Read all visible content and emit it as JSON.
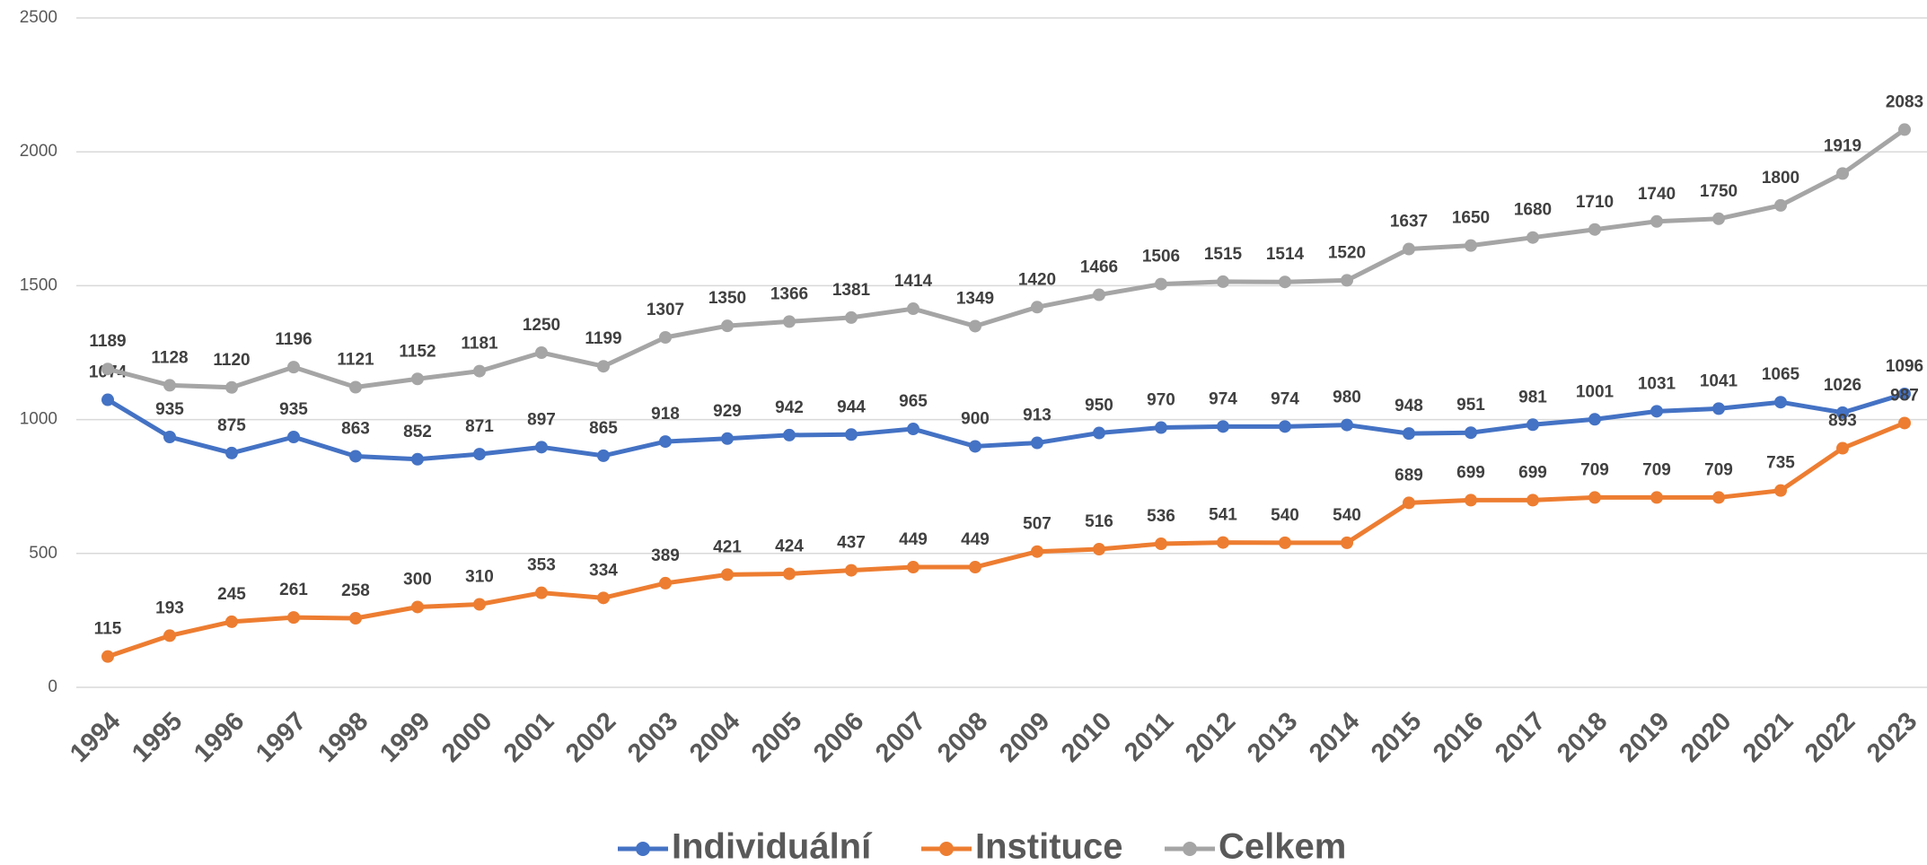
{
  "chart_data": {
    "type": "line",
    "categories": [
      "1994",
      "1995",
      "1996",
      "1997",
      "1998",
      "1999",
      "2000",
      "2001",
      "2002",
      "2003",
      "2004",
      "2005",
      "2006",
      "2007",
      "2008",
      "2009",
      "2010",
      "2011",
      "2012",
      "2013",
      "2014",
      "2015",
      "2016",
      "2017",
      "2018",
      "2019",
      "2020",
      "2021",
      "2022",
      "2023"
    ],
    "series": [
      {
        "name": "Individuální",
        "color": "#4472c4",
        "values": [
          1074,
          935,
          875,
          935,
          863,
          852,
          871,
          897,
          865,
          918,
          929,
          942,
          944,
          965,
          900,
          913,
          950,
          970,
          974,
          974,
          980,
          948,
          951,
          981,
          1001,
          1031,
          1041,
          1065,
          1026,
          1096
        ]
      },
      {
        "name": "Instituce",
        "color": "#ed7d31",
        "values": [
          115,
          193,
          245,
          261,
          258,
          300,
          310,
          353,
          334,
          389,
          421,
          424,
          437,
          449,
          449,
          507,
          516,
          536,
          541,
          540,
          540,
          689,
          699,
          699,
          709,
          709,
          709,
          735,
          893,
          987
        ]
      },
      {
        "name": "Celkem",
        "color": "#a5a5a5",
        "values": [
          1189,
          1128,
          1120,
          1196,
          1121,
          1152,
          1181,
          1250,
          1199,
          1307,
          1350,
          1366,
          1381,
          1414,
          1349,
          1420,
          1466,
          1506,
          1515,
          1514,
          1520,
          1637,
          1650,
          1680,
          1710,
          1740,
          1750,
          1800,
          1919,
          2083
        ]
      }
    ],
    "ylim": [
      0,
      2500
    ],
    "yticks": [
      0,
      500,
      1000,
      1500,
      2000,
      2500
    ],
    "grid": true,
    "legend": "bottom"
  }
}
